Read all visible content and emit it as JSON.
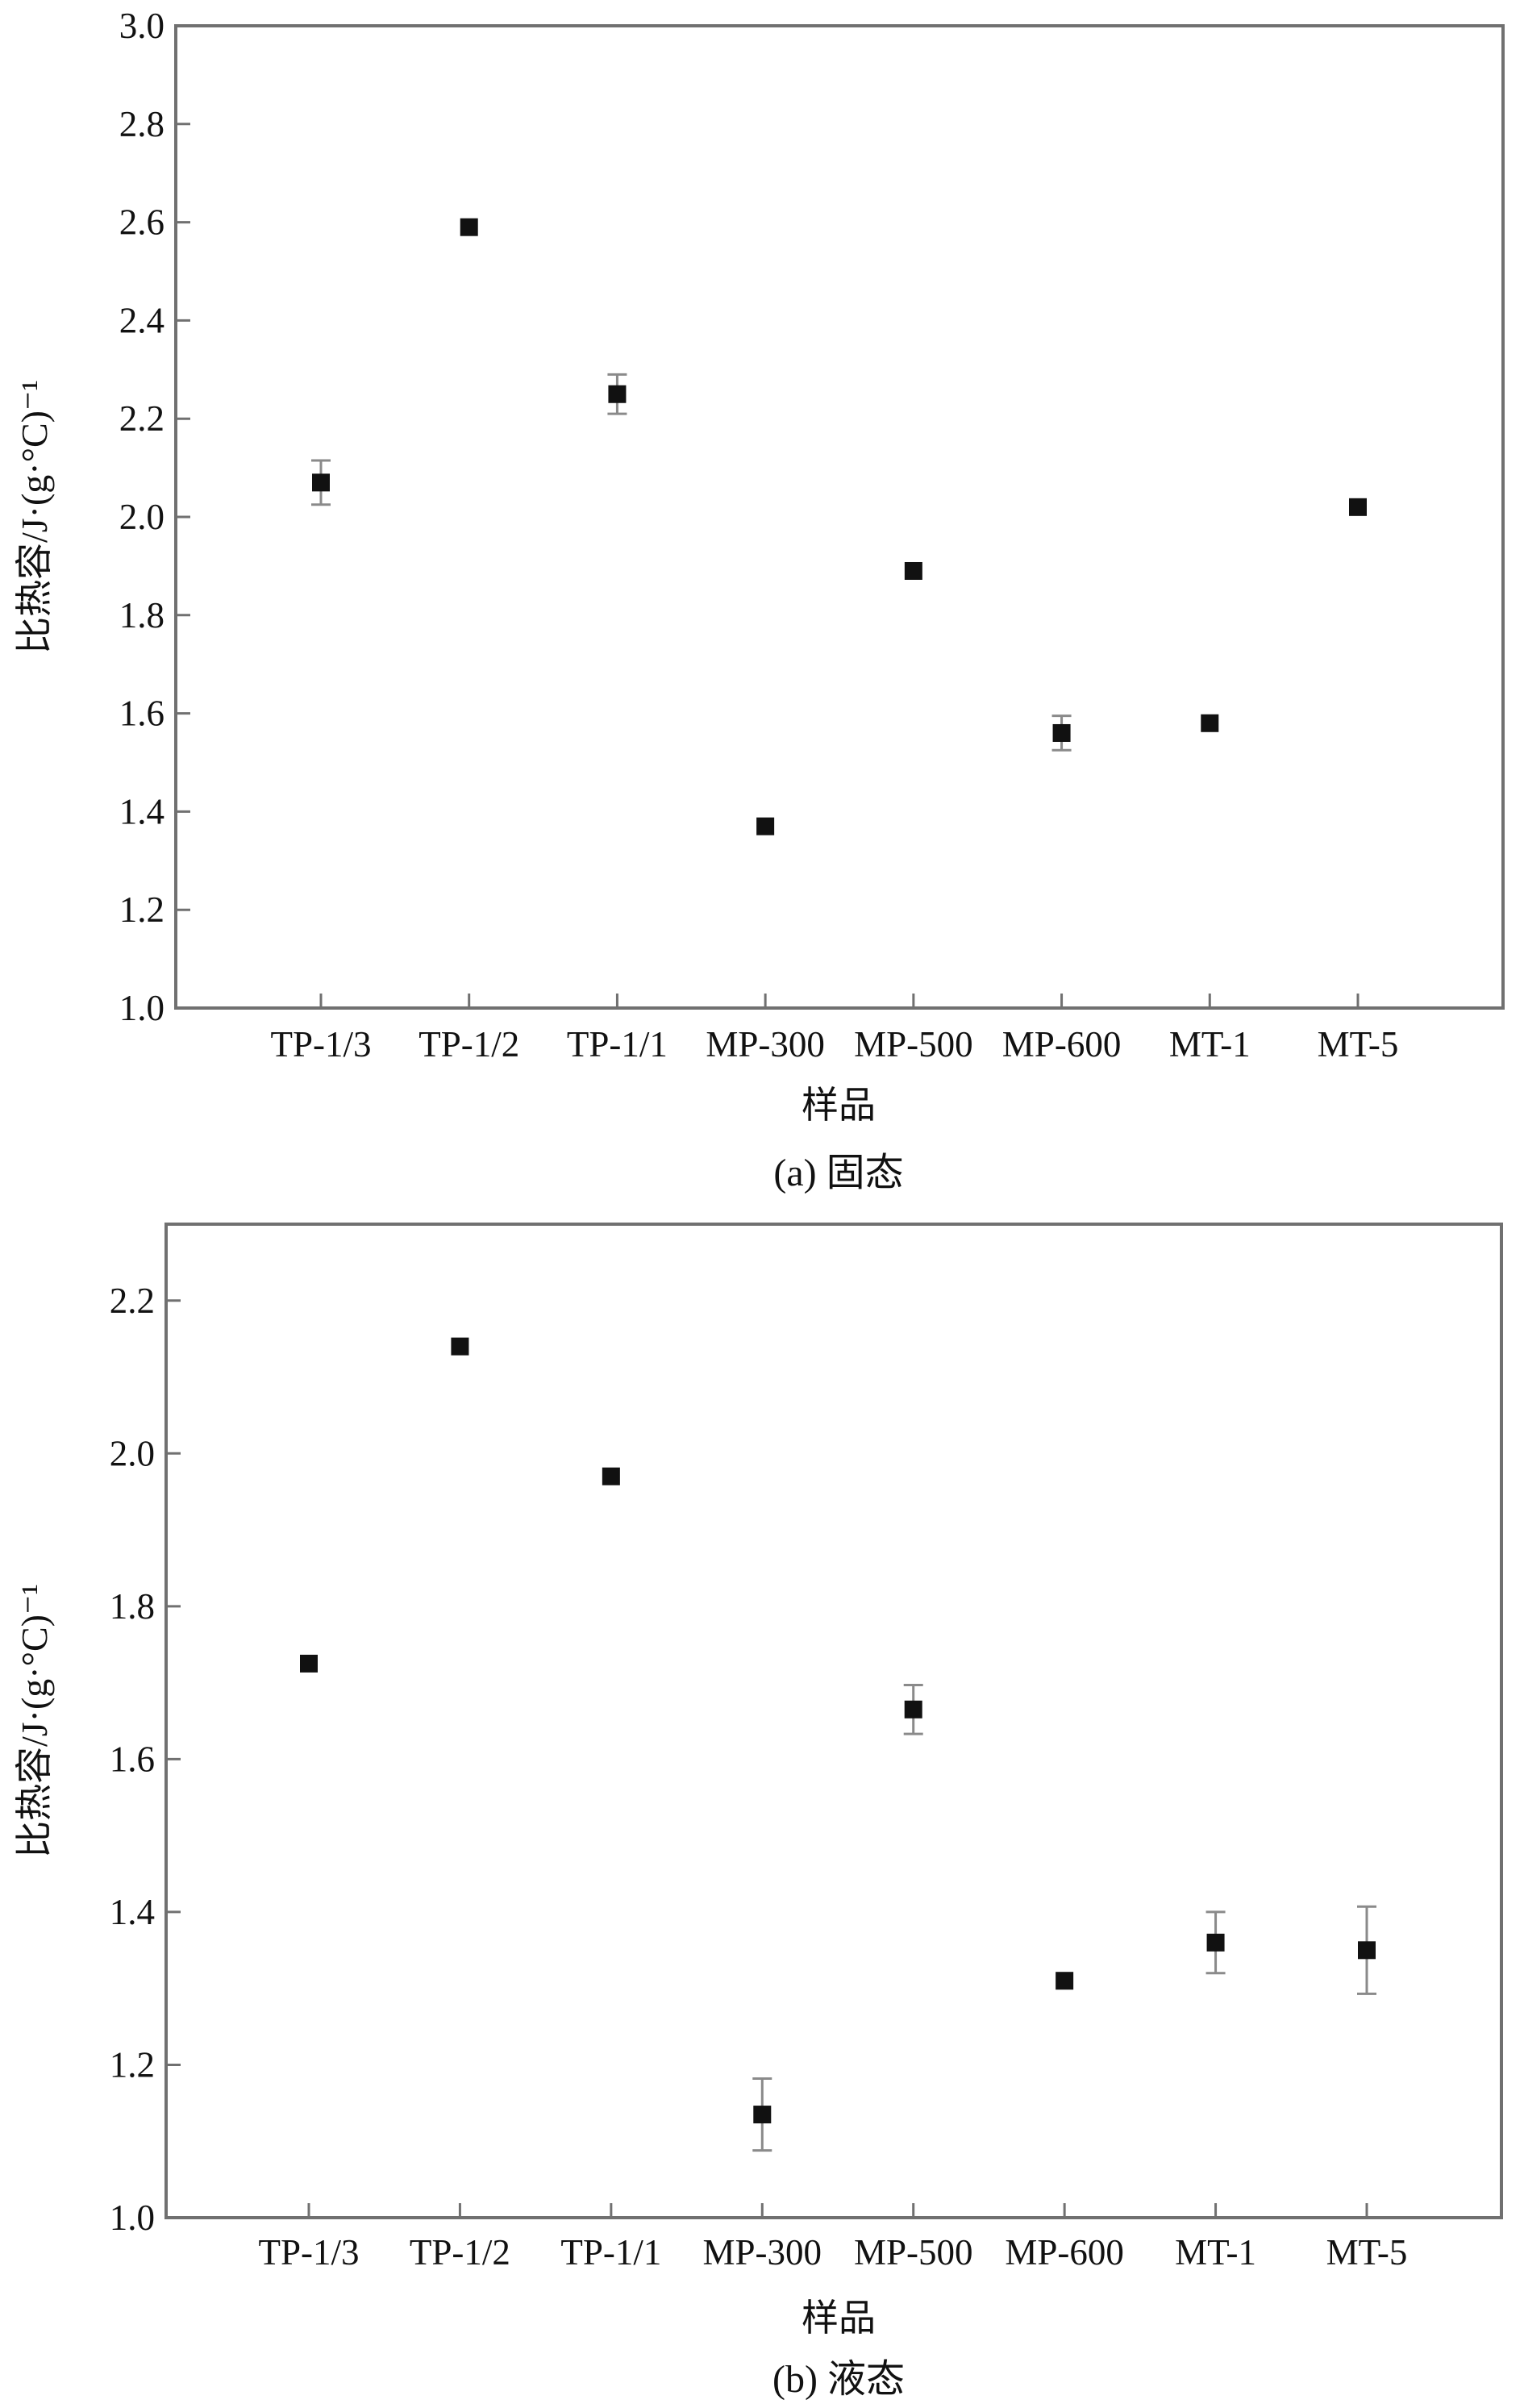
{
  "chart_data": [
    {
      "panel": "a",
      "type": "scatter",
      "caption": "(a) 固态",
      "xlabel": "样品",
      "ylabel": "比热容/J·(g·°C)⁻¹",
      "categories": [
        "TP-1/3",
        "TP-1/2",
        "TP-1/1",
        "MP-300",
        "MP-500",
        "MP-600",
        "MT-1",
        "MT-5"
      ],
      "values": [
        2.07,
        2.59,
        2.25,
        1.37,
        1.89,
        1.56,
        1.58,
        2.02
      ],
      "errors": [
        0.045,
        0.0,
        0.04,
        0.0,
        0.0,
        0.035,
        0.0,
        0.0
      ],
      "ylim": [
        1.0,
        3.0
      ],
      "yticks": [
        1.0,
        1.2,
        1.4,
        1.6,
        1.8,
        2.0,
        2.2,
        2.4,
        2.6,
        2.8,
        3.0
      ],
      "ytick_labels": [
        "1.0",
        "1.2",
        "1.4",
        "1.6",
        "1.8",
        "2.0",
        "2.2",
        "2.4",
        "2.6",
        "2.8",
        "3.0"
      ],
      "grid": false,
      "legend": "none",
      "marker_color": "#111111"
    },
    {
      "panel": "b",
      "type": "scatter",
      "caption": "(b) 液态",
      "xlabel": "样品",
      "ylabel": "比热容/J·(g·°C)⁻¹",
      "categories": [
        "TP-1/3",
        "TP-1/2",
        "TP-1/1",
        "MP-300",
        "MP-500",
        "MP-600",
        "MT-1",
        "MT-5"
      ],
      "values": [
        1.725,
        2.14,
        1.97,
        1.135,
        1.665,
        1.31,
        1.36,
        1.35
      ],
      "errors": [
        0.0,
        0.0,
        0.0,
        0.047,
        0.032,
        0.0,
        0.04,
        0.057
      ],
      "ylim": [
        1.0,
        2.3
      ],
      "yticks": [
        1.0,
        1.2,
        1.4,
        1.6,
        1.8,
        2.0,
        2.2
      ],
      "ytick_labels": [
        "1.0",
        "1.2",
        "1.4",
        "1.6",
        "1.8",
        "2.0",
        "2.2"
      ],
      "grid": false,
      "legend": "none",
      "marker_color": "#111111"
    }
  ]
}
